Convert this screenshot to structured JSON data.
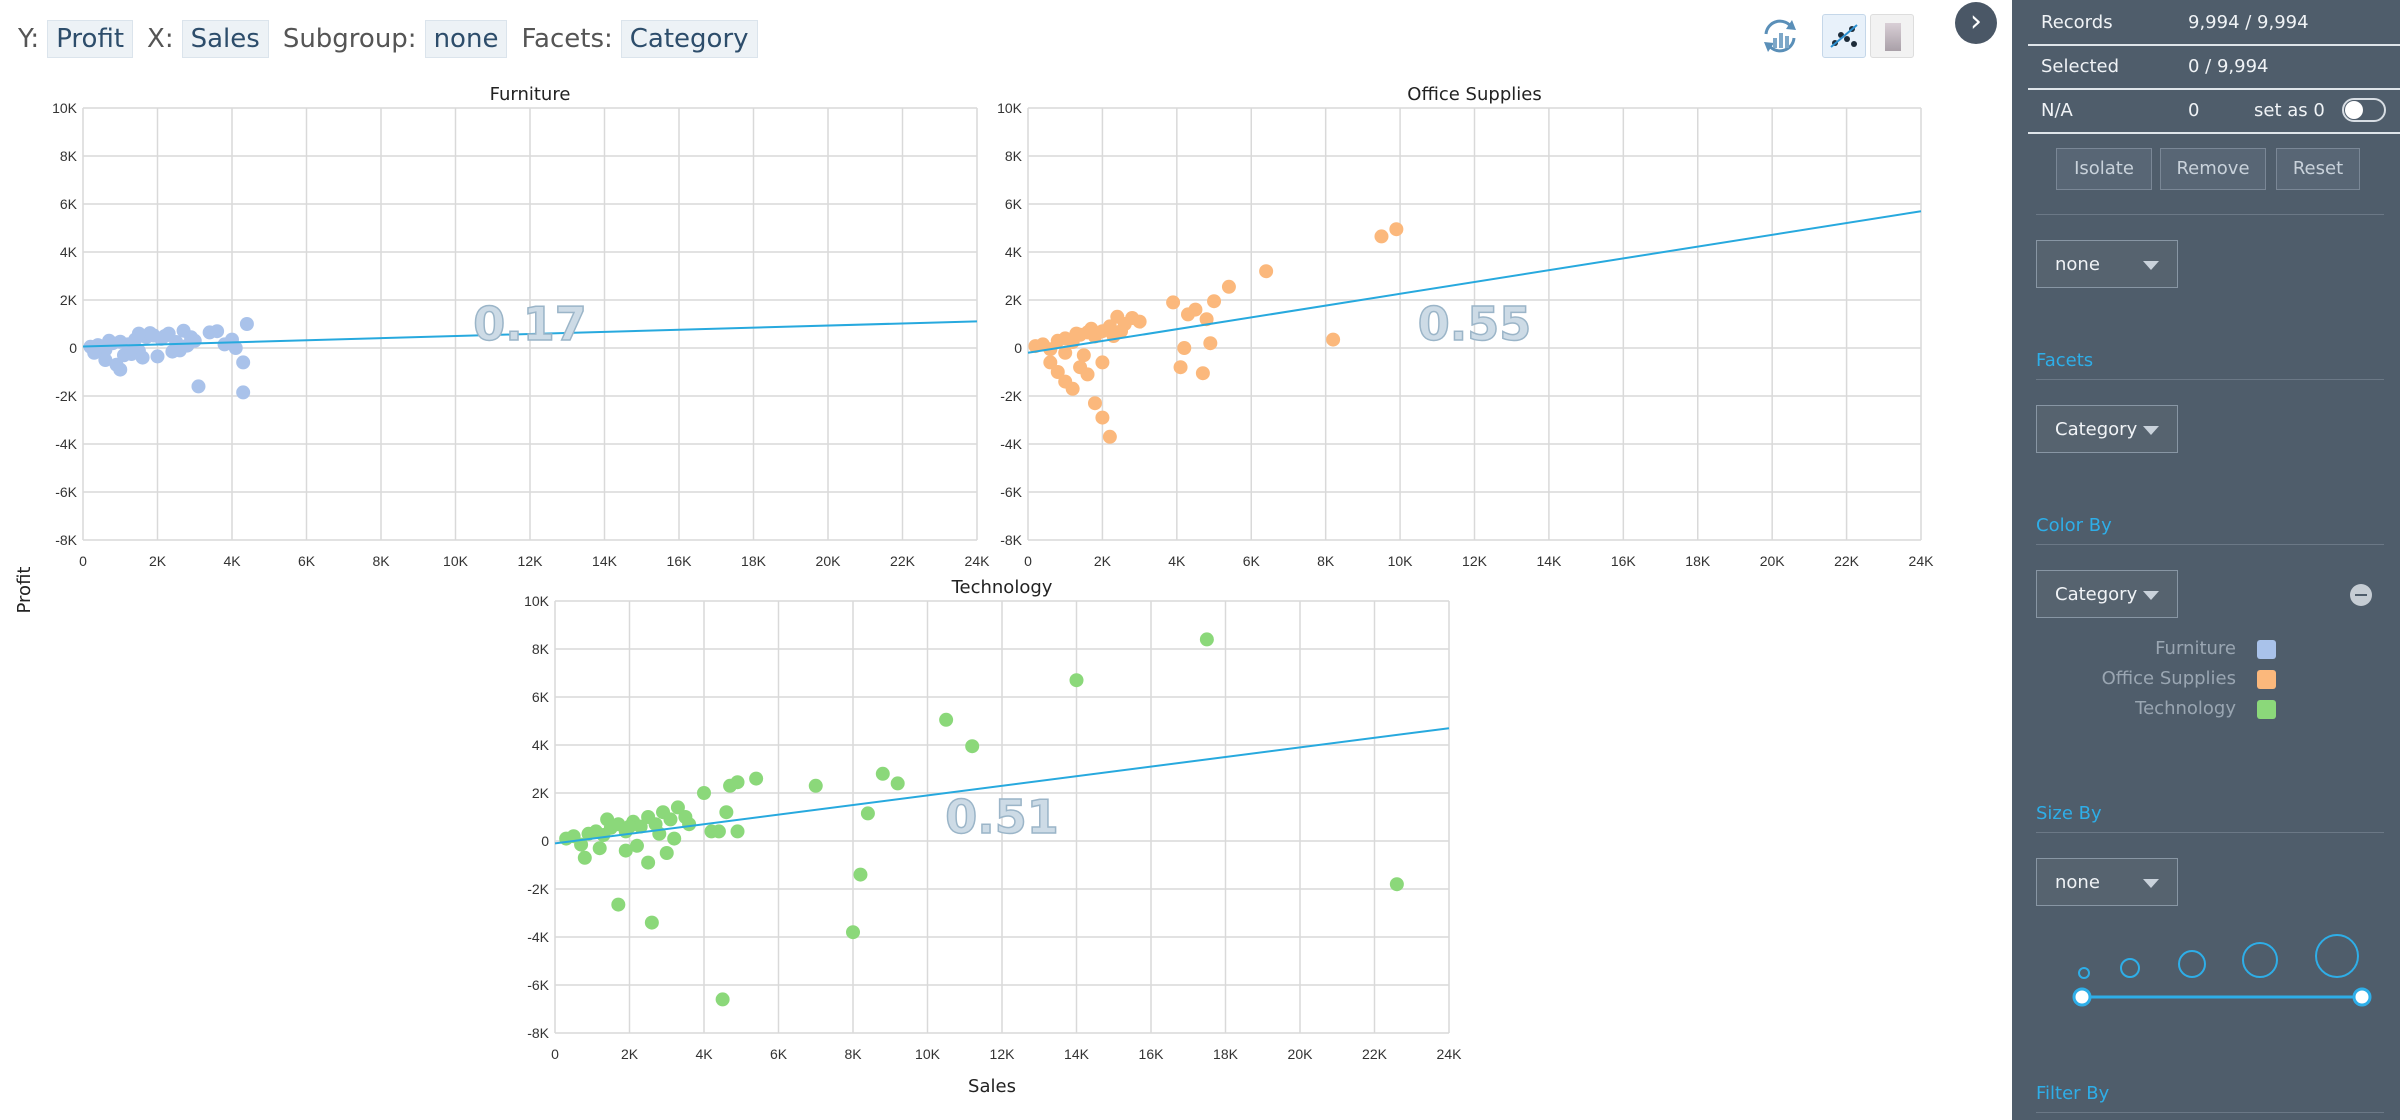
{
  "toolbar": {
    "y_label": "Y:",
    "y_value": "Profit",
    "x_label": "X:",
    "x_value": "Sales",
    "subgroup_label": "Subgroup:",
    "subgroup_value": "none",
    "facets_label": "Facets:",
    "facets_value": "Category",
    "icons": [
      "refresh-chart-icon",
      "scatter-plot-icon",
      "bar-chart-icon",
      "chevron-right-icon"
    ]
  },
  "chart_data": {
    "type": "scatter",
    "xlabel": "Sales",
    "ylabel": "Profit",
    "xlim": [
      0,
      24000
    ],
    "ylim": [
      -8000,
      10000
    ],
    "x_ticks": [
      0,
      2000,
      4000,
      6000,
      8000,
      10000,
      12000,
      14000,
      16000,
      18000,
      20000,
      22000,
      24000
    ],
    "x_tick_labels": [
      "0",
      "2K",
      "4K",
      "6K",
      "8K",
      "10K",
      "12K",
      "14K",
      "16K",
      "18K",
      "20K",
      "22K",
      "24K"
    ],
    "y_ticks": [
      -8000,
      -6000,
      -4000,
      -2000,
      0,
      2000,
      4000,
      6000,
      8000,
      10000
    ],
    "y_tick_labels": [
      "-8K",
      "-6K",
      "-4K",
      "-2K",
      "0",
      "2K",
      "4K",
      "6K",
      "8K",
      "10K"
    ],
    "grid": true,
    "facets": [
      {
        "name": "Furniture",
        "color": "#a9c2ea",
        "correlation": "0.17",
        "trend": [
          [
            0,
            60
          ],
          [
            24000,
            1110
          ]
        ],
        "points": [
          [
            200,
            50
          ],
          [
            400,
            120
          ],
          [
            600,
            -80
          ],
          [
            800,
            200
          ],
          [
            1000,
            260
          ],
          [
            1200,
            150
          ],
          [
            1400,
            350
          ],
          [
            1500,
            -120
          ],
          [
            1700,
            450
          ],
          [
            1900,
            520
          ],
          [
            2100,
            380
          ],
          [
            2300,
            600
          ],
          [
            2500,
            250
          ],
          [
            2700,
            720
          ],
          [
            2900,
            450
          ],
          [
            3000,
            300
          ],
          [
            1100,
            -300
          ],
          [
            600,
            -500
          ],
          [
            900,
            -700
          ],
          [
            1300,
            -250
          ],
          [
            1600,
            -400
          ],
          [
            2000,
            -350
          ],
          [
            2400,
            -150
          ],
          [
            3100,
            -1600
          ],
          [
            3400,
            650
          ],
          [
            3600,
            700
          ],
          [
            3800,
            150
          ],
          [
            4000,
            350
          ],
          [
            4100,
            0
          ],
          [
            4300,
            -600
          ],
          [
            4400,
            1000
          ],
          [
            4300,
            -1850
          ],
          [
            1800,
            620
          ],
          [
            2200,
            500
          ],
          [
            2600,
            -100
          ],
          [
            700,
            300
          ],
          [
            300,
            -200
          ],
          [
            1000,
            -900
          ],
          [
            1500,
            600
          ],
          [
            2800,
            100
          ]
        ]
      },
      {
        "name": "Office Supplies",
        "color": "#fbb87c",
        "correlation": "0.55",
        "trend": [
          [
            0,
            -200
          ],
          [
            24000,
            5700
          ]
        ],
        "points": [
          [
            200,
            80
          ],
          [
            400,
            150
          ],
          [
            600,
            -50
          ],
          [
            800,
            300
          ],
          [
            1000,
            400
          ],
          [
            1200,
            250
          ],
          [
            1400,
            550
          ],
          [
            1600,
            650
          ],
          [
            1800,
            480
          ],
          [
            2000,
            700
          ],
          [
            2200,
            900
          ],
          [
            2400,
            1300
          ],
          [
            2600,
            1000
          ],
          [
            2800,
            1250
          ],
          [
            3000,
            1100
          ],
          [
            600,
            -600
          ],
          [
            800,
            -1000
          ],
          [
            1000,
            -1400
          ],
          [
            1200,
            -1700
          ],
          [
            1400,
            -800
          ],
          [
            1600,
            -1100
          ],
          [
            1800,
            -2300
          ],
          [
            2000,
            -2900
          ],
          [
            2200,
            -3700
          ],
          [
            1500,
            -300
          ],
          [
            1000,
            -200
          ],
          [
            2000,
            -600
          ],
          [
            3900,
            1900
          ],
          [
            4100,
            -800
          ],
          [
            4200,
            0
          ],
          [
            4300,
            1400
          ],
          [
            4500,
            1600
          ],
          [
            4700,
            -1050
          ],
          [
            4800,
            1200
          ],
          [
            4900,
            200
          ],
          [
            5000,
            1950
          ],
          [
            5400,
            2550
          ],
          [
            6400,
            3200
          ],
          [
            8200,
            350
          ],
          [
            9500,
            4650
          ],
          [
            9900,
            4950
          ],
          [
            1300,
            600
          ],
          [
            1700,
            800
          ],
          [
            2300,
            500
          ],
          [
            2500,
            700
          ]
        ]
      },
      {
        "name": "Technology",
        "color": "#8bd87a",
        "correlation": "0.51",
        "trend": [
          [
            0,
            -100
          ],
          [
            24000,
            4700
          ]
        ],
        "points": [
          [
            300,
            100
          ],
          [
            500,
            200
          ],
          [
            700,
            -150
          ],
          [
            900,
            300
          ],
          [
            1100,
            400
          ],
          [
            1300,
            250
          ],
          [
            1500,
            550
          ],
          [
            1700,
            700
          ],
          [
            1900,
            400
          ],
          [
            2100,
            800
          ],
          [
            2300,
            600
          ],
          [
            2500,
            1000
          ],
          [
            2700,
            700
          ],
          [
            2900,
            1200
          ],
          [
            3100,
            900
          ],
          [
            3300,
            1400
          ],
          [
            3500,
            1000
          ],
          [
            800,
            -700
          ],
          [
            1200,
            -300
          ],
          [
            1700,
            -2650
          ],
          [
            1900,
            -400
          ],
          [
            2200,
            -200
          ],
          [
            2500,
            -900
          ],
          [
            2600,
            -3400
          ],
          [
            3000,
            -500
          ],
          [
            3200,
            100
          ],
          [
            4000,
            2000
          ],
          [
            4200,
            400
          ],
          [
            4400,
            400
          ],
          [
            4500,
            -6600
          ],
          [
            4600,
            1200
          ],
          [
            4700,
            2300
          ],
          [
            4900,
            2450
          ],
          [
            4900,
            400
          ],
          [
            5400,
            2600
          ],
          [
            7000,
            2300
          ],
          [
            8000,
            -3800
          ],
          [
            8200,
            -1400
          ],
          [
            8400,
            1150
          ],
          [
            8800,
            2800
          ],
          [
            9200,
            2400
          ],
          [
            10500,
            5050
          ],
          [
            11200,
            3950
          ],
          [
            14000,
            6700
          ],
          [
            17500,
            8400
          ],
          [
            22600,
            -1800
          ],
          [
            1400,
            900
          ],
          [
            2000,
            600
          ],
          [
            2800,
            300
          ],
          [
            3600,
            700
          ]
        ]
      }
    ]
  },
  "panel": {
    "records_label": "Records",
    "records_value": "9,994 / 9,994",
    "selected_label": "Selected",
    "selected_value": "0 / 9,994",
    "na_label": "N/A",
    "na_value": "0",
    "set_as_zero": "set as 0",
    "isolate": "Isolate",
    "remove": "Remove",
    "reset": "Reset",
    "subgroup_select": "none",
    "facets_title": "Facets",
    "facets_select": "Category",
    "color_title": "Color By",
    "color_select": "Category",
    "legend": [
      {
        "label": "Furniture",
        "color": "#a9c2ea"
      },
      {
        "label": "Office Supplies",
        "color": "#fbb87c"
      },
      {
        "label": "Technology",
        "color": "#8bd87a"
      }
    ],
    "size_title": "Size By",
    "size_select": "none",
    "filter_title": "Filter By",
    "accent": "#2eaee8",
    "background": "#4f5d6b"
  }
}
